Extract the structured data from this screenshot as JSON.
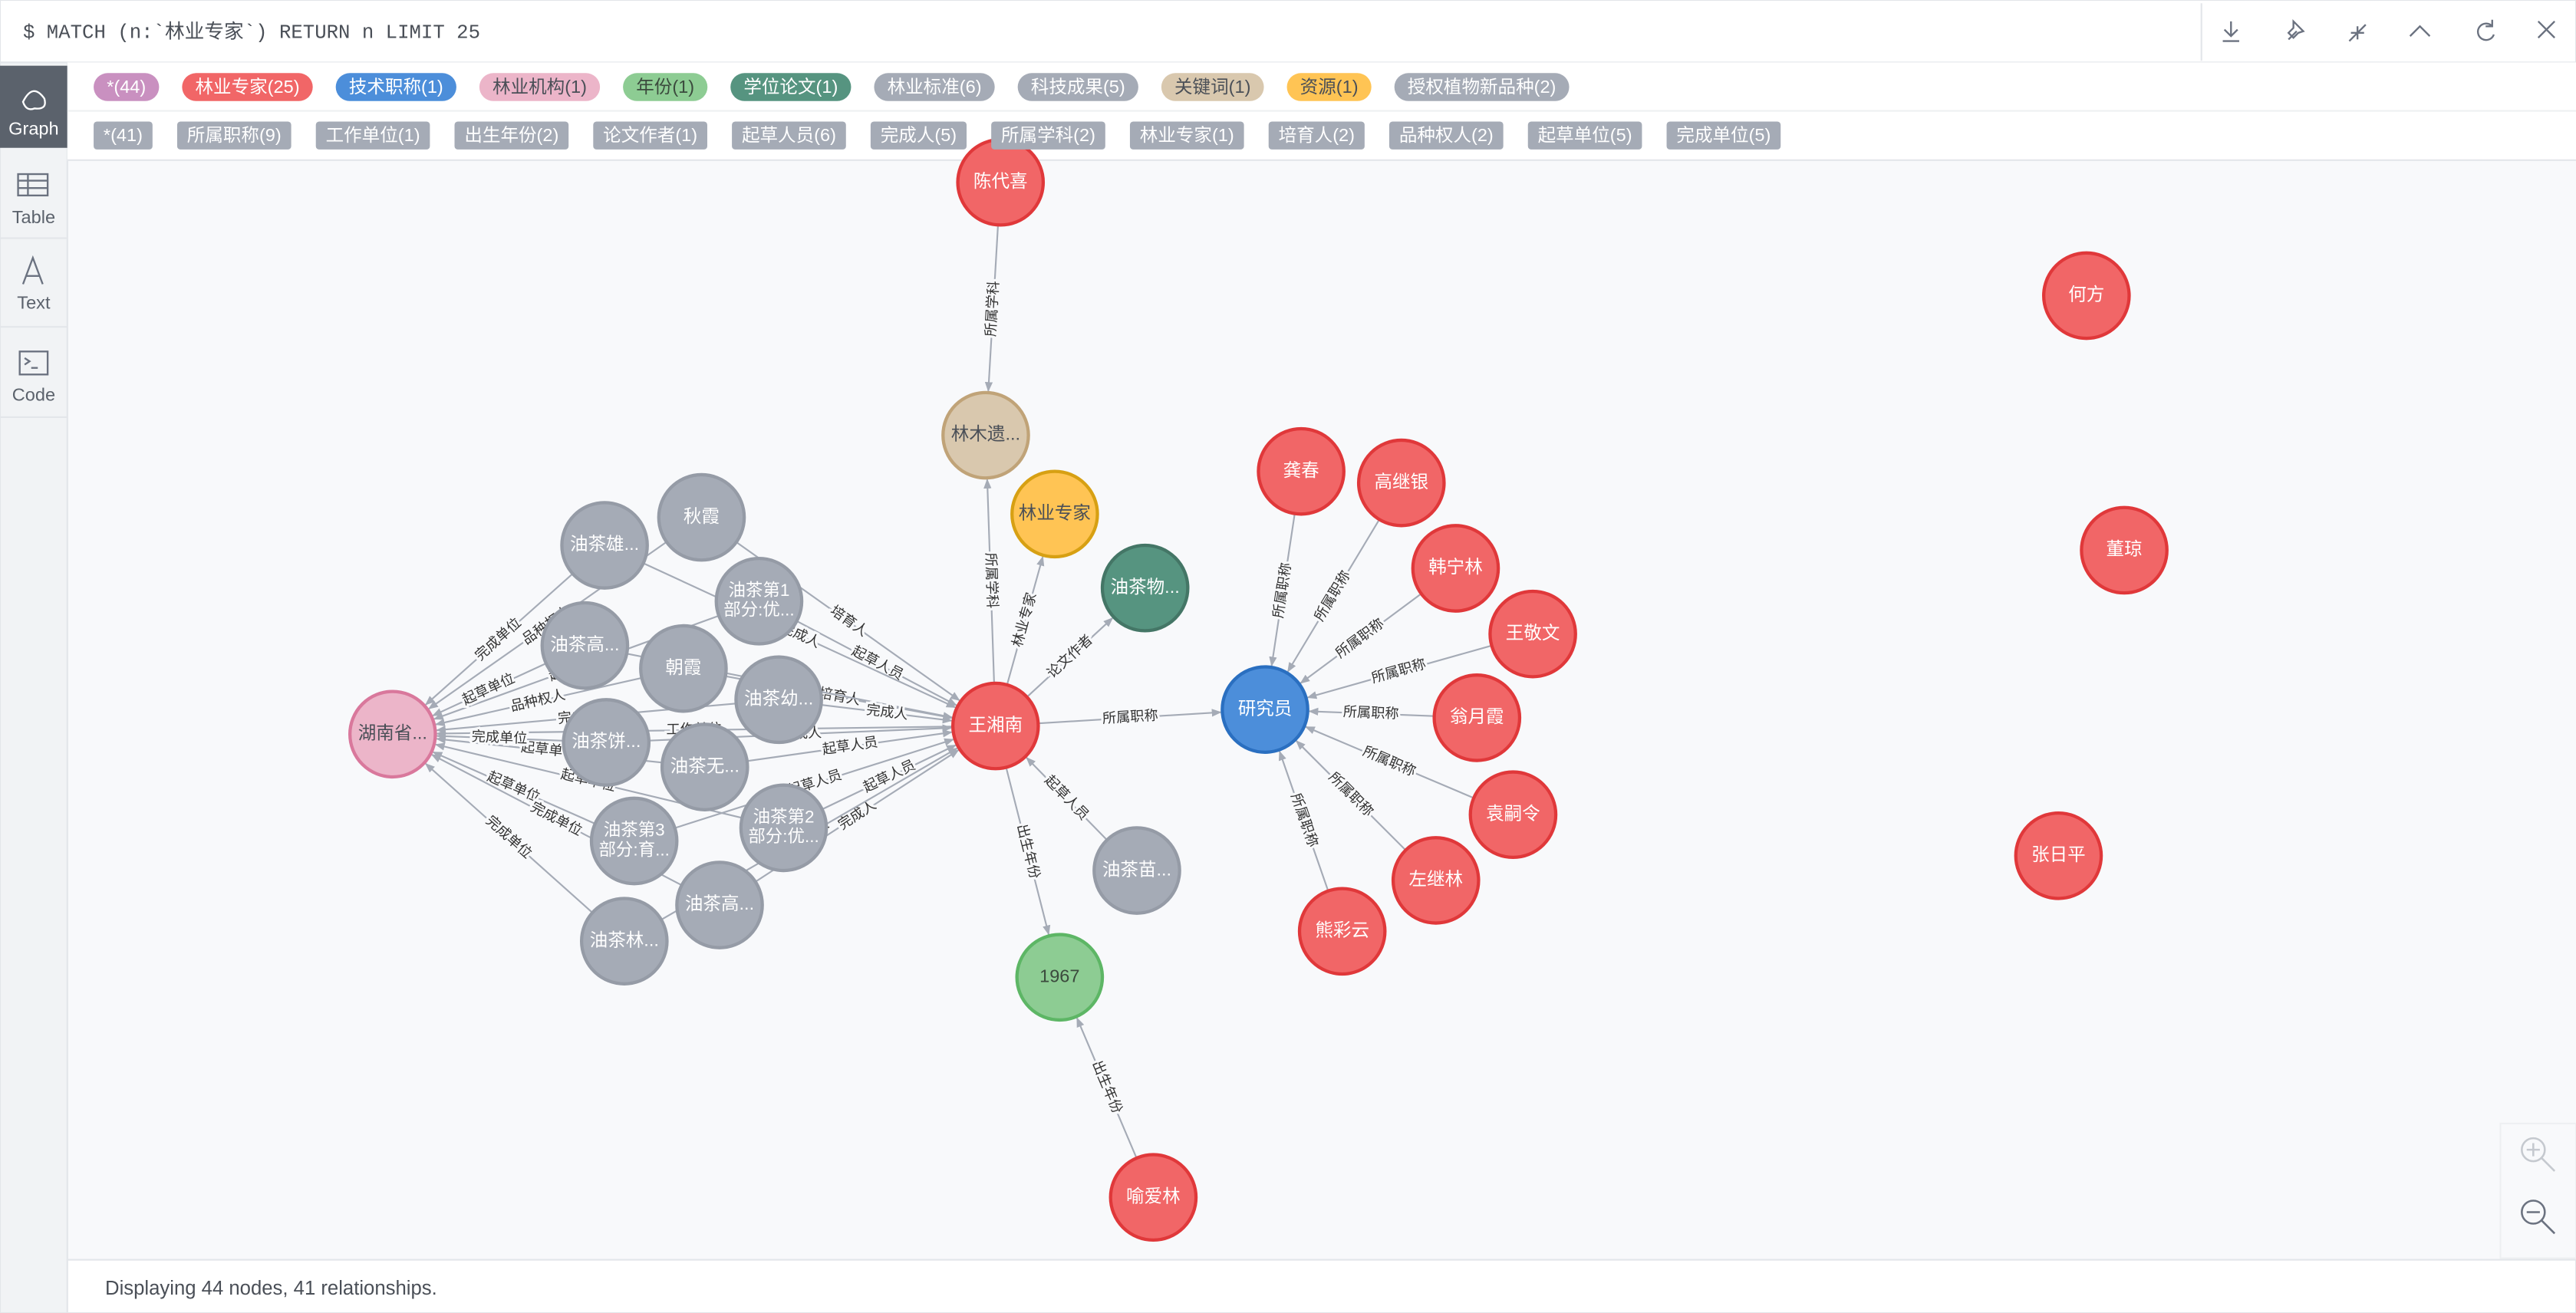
{
  "query": "$ MATCH (n:`林业专家`) RETURN n LIMIT 25",
  "sidebar": [
    "Graph",
    "Table",
    "Text",
    "Code"
  ],
  "node_labels": [
    "*(44)",
    "林业专家(25)",
    "技术职称(1)",
    "林业机构(1)",
    "年份(1)",
    "学位论文(1)",
    "林业标准(6)",
    "科技成果(5)",
    "关键词(1)",
    "资源(1)",
    "授权植物新品种(2)"
  ],
  "relationship_types": [
    "*(41)",
    "所属职称(9)",
    "工作单位(1)",
    "出生年份(2)",
    "论文作者(1)",
    "起草人员(6)",
    "完成人(5)",
    "所属学科(2)",
    "林业专家(1)",
    "培育人(2)",
    "品种权人(2)",
    "起草单位(5)",
    "完成单位(5)"
  ],
  "nodes": [
    "陈代喜",
    "林木遗...",
    "林业专家",
    "油茶物...",
    "王湘南",
    "研究员",
    "油茶苗...",
    "1967",
    "喻爱林",
    "龚春",
    "高继银",
    "韩宁林",
    "王敬文",
    "翁月霞",
    "袁嗣令",
    "左继林",
    "熊彩云",
    "何方",
    "董琼",
    "张日平",
    "湖南省...",
    "油茶雄...",
    "秋霞",
    [
      "油茶第1",
      "部分:优..."
    ],
    "油茶高...",
    "朝霞",
    "油茶幼...",
    "油茶饼...",
    "油茶无...",
    [
      "油茶第3",
      "部分:育..."
    ],
    [
      "油茶第2",
      "部分:优..."
    ],
    "油茶高...",
    "油茶林..."
  ],
  "edges": [
    "所属学科",
    "所属学科",
    "林业专家",
    "论文作者",
    "所属职称",
    "起草人员",
    "出生年份",
    "出生年份",
    "所属职称",
    "所属职称",
    "所属职称",
    "所属职称",
    "所属职称",
    "所属职称",
    "所属职称",
    "所属职称",
    "工作单位",
    "培育人",
    "品种权人",
    "培育人",
    "品种权人",
    "起草人员",
    "起草单位",
    "起草人员",
    "起草单位",
    "起草人员",
    "起草单位",
    "起草人员",
    "起草单位",
    "起草人员",
    "起草单位",
    "完成人",
    "完成单位",
    "完成人",
    "完成单位",
    "完成人",
    "完成单位",
    "完成人",
    "完成单位",
    "完成人",
    "完成单位"
  ],
  "status": "Displaying 44 nodes, 41 relationships."
}
